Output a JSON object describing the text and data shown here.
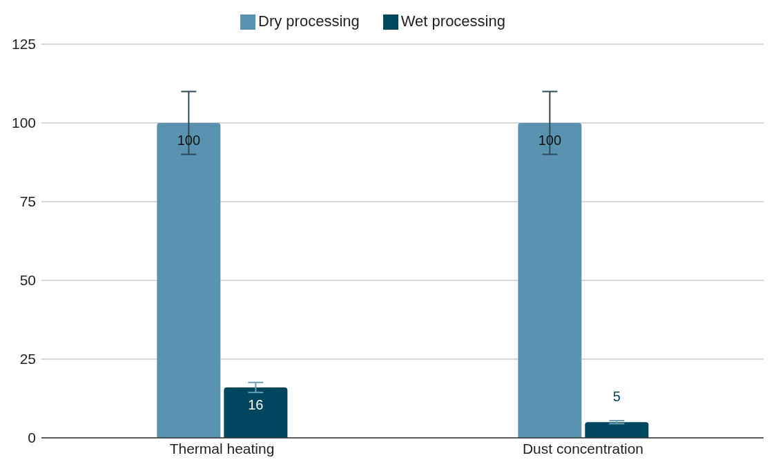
{
  "chart_data": {
    "type": "bar",
    "categories": [
      "Thermal heating",
      "Dust concentration"
    ],
    "series": [
      {
        "name": "Dry processing",
        "color": "#5a93b0",
        "values": [
          100,
          100
        ],
        "errors": [
          10,
          10
        ]
      },
      {
        "name": "Wet processing",
        "color": "#00465f",
        "values": [
          16,
          5
        ],
        "errors": [
          1.6,
          0.5
        ]
      }
    ],
    "ylim": [
      0,
      125
    ],
    "yticks": [
      0,
      25,
      50,
      75,
      100,
      125
    ],
    "grid": "y",
    "legend": "top",
    "data_labels": true
  }
}
